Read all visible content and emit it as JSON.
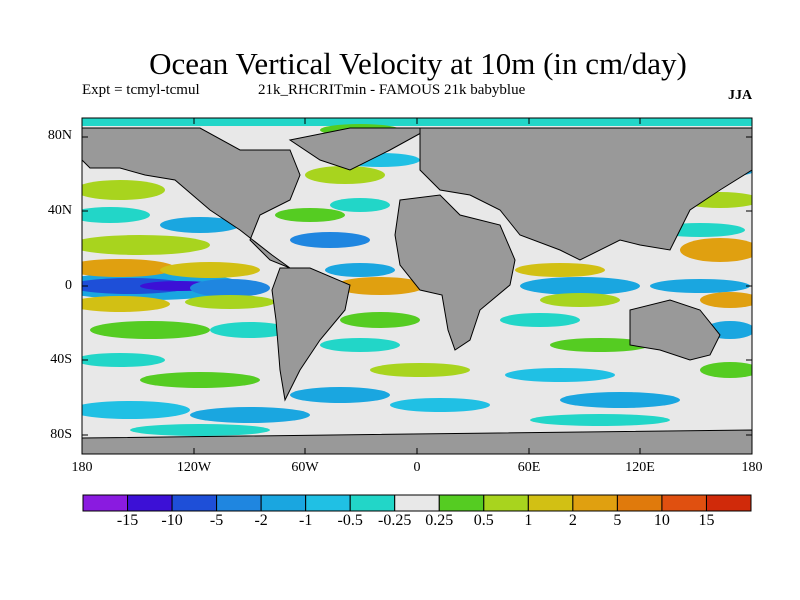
{
  "title": "Ocean Vertical Velocity at 10m (in cm/day)",
  "subtitle_left": "Expt = tcmyl-tcmul",
  "subtitle_right": "21k_RHCRITmin - FAMOUS 21k babyblue",
  "season": "JJA",
  "latitude_labels": [
    "80N",
    "40N",
    "0",
    "40S",
    "80S"
  ],
  "longitude_labels": [
    "180",
    "120W",
    "60W",
    "0",
    "60E",
    "120E",
    "180"
  ],
  "land_color": "#999999",
  "colorbar": {
    "colors": [
      "#8a1be0",
      "#3c10d6",
      "#1e4fd8",
      "#1f86e0",
      "#1aa6e0",
      "#20c0e4",
      "#22d6c8",
      "#e8e8e8",
      "#55cc22",
      "#a8d41e",
      "#d2c014",
      "#e0a010",
      "#e07a0c",
      "#e05010",
      "#d02a0a"
    ],
    "labels": [
      "-15",
      "-10",
      "-5",
      "-2",
      "-1",
      "-0.5",
      "-0.25",
      "0.25",
      "0.5",
      "1",
      "2",
      "5",
      "10",
      "15"
    ]
  }
}
